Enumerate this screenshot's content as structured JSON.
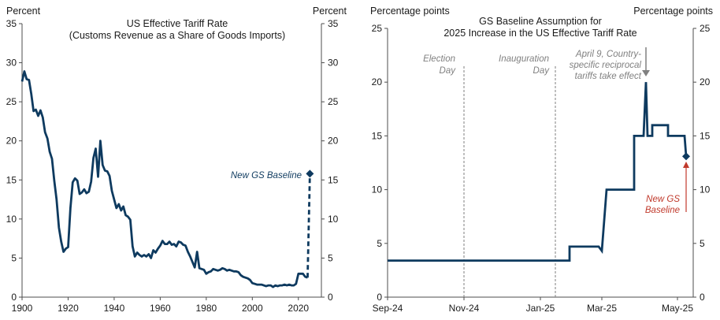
{
  "chart_data": [
    {
      "type": "line",
      "title": "US Effective Tariff Rate",
      "subtitle": "(Customs Revenue  as a Share of Goods Imports)",
      "ylabel_left": "Percent",
      "ylabel_right": "Percent",
      "xlim": [
        1900,
        2030
      ],
      "ylim": [
        0,
        35
      ],
      "x_ticks": [
        "1900",
        "1920",
        "1940",
        "1960",
        "1980",
        "2000",
        "2020"
      ],
      "y_ticks": [
        "0",
        "5",
        "10",
        "15",
        "20",
        "25",
        "30",
        "35"
      ],
      "series": [
        {
          "name": "US Effective Tariff Rate",
          "color": "#0e3a5f",
          "x": [
            1900,
            1901,
            1902,
            1903,
            1904,
            1905,
            1906,
            1907,
            1908,
            1909,
            1910,
            1911,
            1912,
            1913,
            1914,
            1915,
            1916,
            1917,
            1918,
            1919,
            1920,
            1921,
            1922,
            1923,
            1924,
            1925,
            1926,
            1927,
            1928,
            1929,
            1930,
            1931,
            1932,
            1933,
            1934,
            1935,
            1936,
            1937,
            1938,
            1939,
            1940,
            1941,
            1942,
            1943,
            1944,
            1945,
            1946,
            1947,
            1948,
            1949,
            1950,
            1951,
            1952,
            1953,
            1954,
            1955,
            1956,
            1957,
            1958,
            1959,
            1960,
            1961,
            1962,
            1963,
            1964,
            1965,
            1966,
            1967,
            1968,
            1969,
            1970,
            1971,
            1972,
            1973,
            1974,
            1975,
            1976,
            1977,
            1978,
            1979,
            1980,
            1981,
            1982,
            1983,
            1984,
            1985,
            1986,
            1987,
            1988,
            1989,
            1990,
            1991,
            1992,
            1993,
            1994,
            1995,
            1996,
            1997,
            1998,
            1999,
            2000,
            2001,
            2002,
            2003,
            2004,
            2005,
            2006,
            2007,
            2008,
            2009,
            2010,
            2011,
            2012,
            2013,
            2014,
            2015,
            2016,
            2017,
            2018,
            2019,
            2020,
            2021,
            2022,
            2023,
            2024
          ],
          "values": [
            27.6,
            28.9,
            27.9,
            27.8,
            26.0,
            23.8,
            24.0,
            23.2,
            23.9,
            23.0,
            21.1,
            20.3,
            18.6,
            17.7,
            14.9,
            12.5,
            8.9,
            7.1,
            5.8,
            6.2,
            6.4,
            11.4,
            14.7,
            15.2,
            14.9,
            13.2,
            13.4,
            13.8,
            13.3,
            13.5,
            14.8,
            17.8,
            19.0,
            15.4,
            20.0,
            16.9,
            16.2,
            16.1,
            15.5,
            13.6,
            12.5,
            11.4,
            11.9,
            11.1,
            11.6,
            10.5,
            10.3,
            9.9,
            6.5,
            5.2,
            5.7,
            5.4,
            5.2,
            5.4,
            5.2,
            5.5,
            5.0,
            6.0,
            5.7,
            6.2,
            6.6,
            7.2,
            6.8,
            6.8,
            7.1,
            6.7,
            6.8,
            6.5,
            7.1,
            7.0,
            6.7,
            6.6,
            5.8,
            5.2,
            4.5,
            3.8,
            5.8,
            3.7,
            3.6,
            3.5,
            3.0,
            3.2,
            3.3,
            3.6,
            3.5,
            3.4,
            3.5,
            3.7,
            3.6,
            3.4,
            3.5,
            3.4,
            3.3,
            3.3,
            3.2,
            2.8,
            2.6,
            2.5,
            2.4,
            2.2,
            1.8,
            1.7,
            1.6,
            1.6,
            1.6,
            1.5,
            1.4,
            1.5,
            1.5,
            1.3,
            1.5,
            1.4,
            1.5,
            1.5,
            1.6,
            1.5,
            1.6,
            1.5,
            1.5,
            1.7,
            3.0,
            3.0,
            3.0,
            2.6,
            2.5
          ]
        },
        {
          "name": "New GS Baseline",
          "color": "#0e3a5f",
          "style": "dashed",
          "x": [
            2024,
            2025
          ],
          "values": [
            2.5,
            15.8
          ]
        }
      ],
      "annotations": [
        {
          "text": "New GS Baseline",
          "x": 2025,
          "y": 15.8
        }
      ]
    },
    {
      "type": "line",
      "title": "GS Baseline Assumption for",
      "subtitle": "2025 Increase in the US Effective Tariff Rate",
      "ylabel_left": "Percentage points",
      "ylabel_right": "Percentage points",
      "ylim": [
        0,
        25
      ],
      "x_ticks": [
        "Sep-24",
        "Nov-24",
        "Jan-25",
        "Mar-25",
        "May-25"
      ],
      "y_ticks": [
        "0",
        "5",
        "10",
        "15",
        "20",
        "25"
      ],
      "series": [
        {
          "name": "GS Baseline Assumption",
          "color": "#0e3a5f",
          "x": [
            "Sep-24",
            "Jan-25",
            "Jan-25",
            "Feb-25",
            "Feb-25",
            "Feb-25",
            "Feb-25",
            "Feb-25",
            "Mar-25",
            "Mar-25",
            "Mar-25",
            "Mar-25",
            "Apr-25",
            "Apr-25",
            "Apr-25",
            "Apr-25",
            "Apr-25",
            "Apr-25",
            "Apr-25",
            "Apr-25",
            "Apr-25",
            "Apr-25",
            "Apr-25",
            "Apr-25",
            "May-25",
            "May-25",
            "May-25"
          ],
          "values": [
            3.4,
            3.4,
            3.4,
            3.4,
            4.7,
            4.7,
            4.7,
            4.3,
            4.3,
            10.0,
            10.0,
            10.0,
            10.0,
            15.0,
            15.0,
            20.0,
            15.0,
            15.0,
            16.0,
            16.0,
            15.0,
            15.0,
            15.0,
            15.0,
            15.0,
            15.0,
            13.1
          ]
        }
      ],
      "annotations": [
        {
          "text": "Election Day",
          "type": "vertical-line",
          "date": "Nov-24"
        },
        {
          "text": "Inauguration Day",
          "type": "vertical-line",
          "date": "Jan-25"
        },
        {
          "text": "April 9, Country-specific reciprocal tariffs take effect",
          "x": "Apr-25",
          "y": 20.0
        },
        {
          "text": "New GS Baseline",
          "x": "May-25",
          "y": 13.1
        }
      ]
    }
  ],
  "left": {
    "unit_left": "Percent",
    "unit_right": "Percent",
    "title_line1": "US Effective Tariff Rate",
    "title_line2": "(Customs Revenue  as a Share of Goods Imports)",
    "annotation": "New GS Baseline"
  },
  "right": {
    "unit_left": "Percentage points",
    "unit_right": "Percentage points",
    "title_line1": "GS Baseline Assumption for",
    "title_line2": "2025 Increase in the US Effective Tariff Rate",
    "election_line1": "Election",
    "election_line2": "Day",
    "inauguration_line1": "Inauguration",
    "inauguration_line2": "Day",
    "april_line1": "April 9, Country-",
    "april_line2": "specific reciprocal",
    "april_line3": "tariffs take effect",
    "baseline_line1": "New GS",
    "baseline_line2": "Baseline"
  },
  "colors": {
    "line": "#0e3a5f",
    "axis": "#4d4d4d",
    "event_line": "#7f7f7f",
    "event_text": "#808080",
    "baseline_text": "#c0392b"
  }
}
